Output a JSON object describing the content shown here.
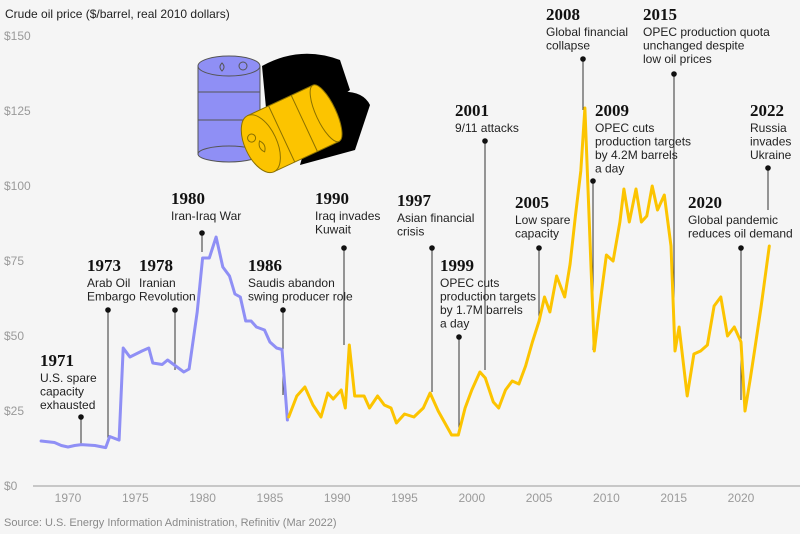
{
  "chart_data": {
    "type": "line",
    "title": "Crude oil price ($/barrel, real 2010 dollars)",
    "source": "Source: U.S. Energy Information Administration, Refinitiv (Mar 2022)",
    "xlim": [
      1968,
      2022.5
    ],
    "ylim": [
      0,
      150
    ],
    "x_ticks": [
      1970,
      1975,
      1980,
      1985,
      1990,
      1995,
      2000,
      2005,
      2010,
      2015,
      2020
    ],
    "y_ticks": [
      0,
      25,
      50,
      75,
      100,
      125,
      150
    ],
    "y_tick_labels": [
      "$0",
      "$25",
      "$50",
      "$75",
      "$100",
      "$125",
      "$150"
    ],
    "grid": false,
    "colors": {
      "early": "#8f8ff5",
      "late": "#fcc400",
      "annotation": "#222222"
    },
    "series": [
      {
        "color": "#8f8ff5",
        "points": [
          [
            1968,
            15
          ],
          [
            1969,
            14.5
          ],
          [
            1969.5,
            13.5
          ],
          [
            1970,
            13
          ],
          [
            1970.5,
            13.5
          ],
          [
            1971,
            13.8
          ],
          [
            1972,
            13.5
          ],
          [
            1972.8,
            12.8
          ],
          [
            1973.1,
            16.5
          ],
          [
            1973.8,
            15.3
          ],
          [
            1974.1,
            46
          ],
          [
            1974.6,
            43
          ],
          [
            1975.5,
            45
          ],
          [
            1976,
            46
          ],
          [
            1976.3,
            41
          ],
          [
            1977,
            40.5
          ],
          [
            1977.4,
            42
          ],
          [
            1978,
            40
          ],
          [
            1978.6,
            38
          ],
          [
            1979,
            39
          ],
          [
            1979.6,
            58
          ],
          [
            1980,
            76
          ],
          [
            1980.5,
            76
          ],
          [
            1981,
            83
          ],
          [
            1981.5,
            73
          ],
          [
            1982,
            70
          ],
          [
            1982.4,
            64
          ],
          [
            1982.8,
            63
          ],
          [
            1983.2,
            55
          ],
          [
            1983.6,
            55
          ],
          [
            1984,
            53
          ],
          [
            1984.6,
            52
          ],
          [
            1985,
            48
          ],
          [
            1985.5,
            46
          ],
          [
            1985.9,
            45.5
          ],
          [
            1986.3,
            22
          ]
        ]
      },
      {
        "color": "#fcc400",
        "points": [
          [
            1986.4,
            23
          ],
          [
            1987,
            30
          ],
          [
            1987.6,
            33
          ],
          [
            1988.2,
            27
          ],
          [
            1988.8,
            23
          ],
          [
            1989.3,
            31
          ],
          [
            1989.7,
            29
          ],
          [
            1990.3,
            32
          ],
          [
            1990.6,
            26
          ],
          [
            1990.9,
            47
          ],
          [
            1991.3,
            30
          ],
          [
            1992,
            30
          ],
          [
            1992.4,
            26
          ],
          [
            1993,
            30
          ],
          [
            1993.5,
            27
          ],
          [
            1994,
            26
          ],
          [
            1994.4,
            21
          ],
          [
            1995,
            24
          ],
          [
            1995.7,
            23
          ],
          [
            1996.4,
            26
          ],
          [
            1996.9,
            31
          ],
          [
            1997.5,
            25
          ],
          [
            1998,
            21
          ],
          [
            1998.5,
            17
          ],
          [
            1999,
            17
          ],
          [
            1999.5,
            26
          ],
          [
            2000,
            32
          ],
          [
            2000.6,
            38
          ],
          [
            2001,
            36
          ],
          [
            2001.6,
            28
          ],
          [
            2002,
            26
          ],
          [
            2002.5,
            32
          ],
          [
            2003,
            35
          ],
          [
            2003.5,
            34
          ],
          [
            2004,
            40
          ],
          [
            2004.5,
            48
          ],
          [
            2005,
            55
          ],
          [
            2005.4,
            63
          ],
          [
            2005.8,
            58
          ],
          [
            2006.3,
            70
          ],
          [
            2006.9,
            63
          ],
          [
            2007.3,
            74
          ],
          [
            2007.7,
            90
          ],
          [
            2008.1,
            105
          ],
          [
            2008.4,
            126
          ],
          [
            2008.8,
            80
          ],
          [
            2009.1,
            45
          ],
          [
            2009.5,
            60
          ],
          [
            2010,
            77
          ],
          [
            2010.5,
            75
          ],
          [
            2011,
            88
          ],
          [
            2011.3,
            99
          ],
          [
            2011.7,
            88
          ],
          [
            2012.2,
            99
          ],
          [
            2012.6,
            88
          ],
          [
            2013,
            90
          ],
          [
            2013.4,
            100
          ],
          [
            2013.8,
            92
          ],
          [
            2014.3,
            97
          ],
          [
            2014.8,
            80
          ],
          [
            2015.1,
            45
          ],
          [
            2015.4,
            53
          ],
          [
            2016,
            30
          ],
          [
            2016.5,
            44
          ],
          [
            2017,
            45
          ],
          [
            2017.5,
            47
          ],
          [
            2018,
            60
          ],
          [
            2018.5,
            63
          ],
          [
            2019,
            50
          ],
          [
            2019.5,
            53
          ],
          [
            2020,
            48
          ],
          [
            2020.3,
            25
          ],
          [
            2020.7,
            36
          ],
          [
            2021,
            45
          ],
          [
            2021.5,
            60
          ],
          [
            2022.1,
            80
          ]
        ]
      }
    ],
    "annotations": [
      {
        "year": "1971",
        "lines": [
          "U.S. spare",
          "capacity",
          "exhausted"
        ]
      },
      {
        "year": "1973",
        "lines": [
          "Arab Oil",
          "Embargo"
        ]
      },
      {
        "year": "1978",
        "lines": [
          "Iranian",
          "Revolution"
        ]
      },
      {
        "year": "1980",
        "lines": [
          "Iran-Iraq War"
        ]
      },
      {
        "year": "1986",
        "lines": [
          "Saudis abandon",
          "swing producer role"
        ]
      },
      {
        "year": "1990",
        "lines": [
          "Iraq invades",
          "Kuwait"
        ]
      },
      {
        "year": "1997",
        "lines": [
          "Asian financial",
          "crisis"
        ]
      },
      {
        "year": "1999",
        "lines": [
          "OPEC cuts",
          "production targets",
          "by 1.7M barrels",
          "a day"
        ]
      },
      {
        "year": "2001",
        "lines": [
          "9/11 attacks"
        ]
      },
      {
        "year": "2005",
        "lines": [
          "Low spare",
          "capacity"
        ]
      },
      {
        "year": "2008",
        "lines": [
          "Global financial",
          "collapse"
        ]
      },
      {
        "year": "2009",
        "lines": [
          "OPEC cuts",
          "production targets",
          "by 4.2M barrels",
          "a day"
        ]
      },
      {
        "year": "2015",
        "lines": [
          "OPEC production quota",
          "unchanged despite",
          "low oil prices"
        ]
      },
      {
        "year": "2020",
        "lines": [
          "Global pandemic",
          "reduces oil demand"
        ]
      },
      {
        "year": "2022",
        "lines": [
          "Russia",
          "invades",
          "Ukraine"
        ]
      }
    ]
  }
}
